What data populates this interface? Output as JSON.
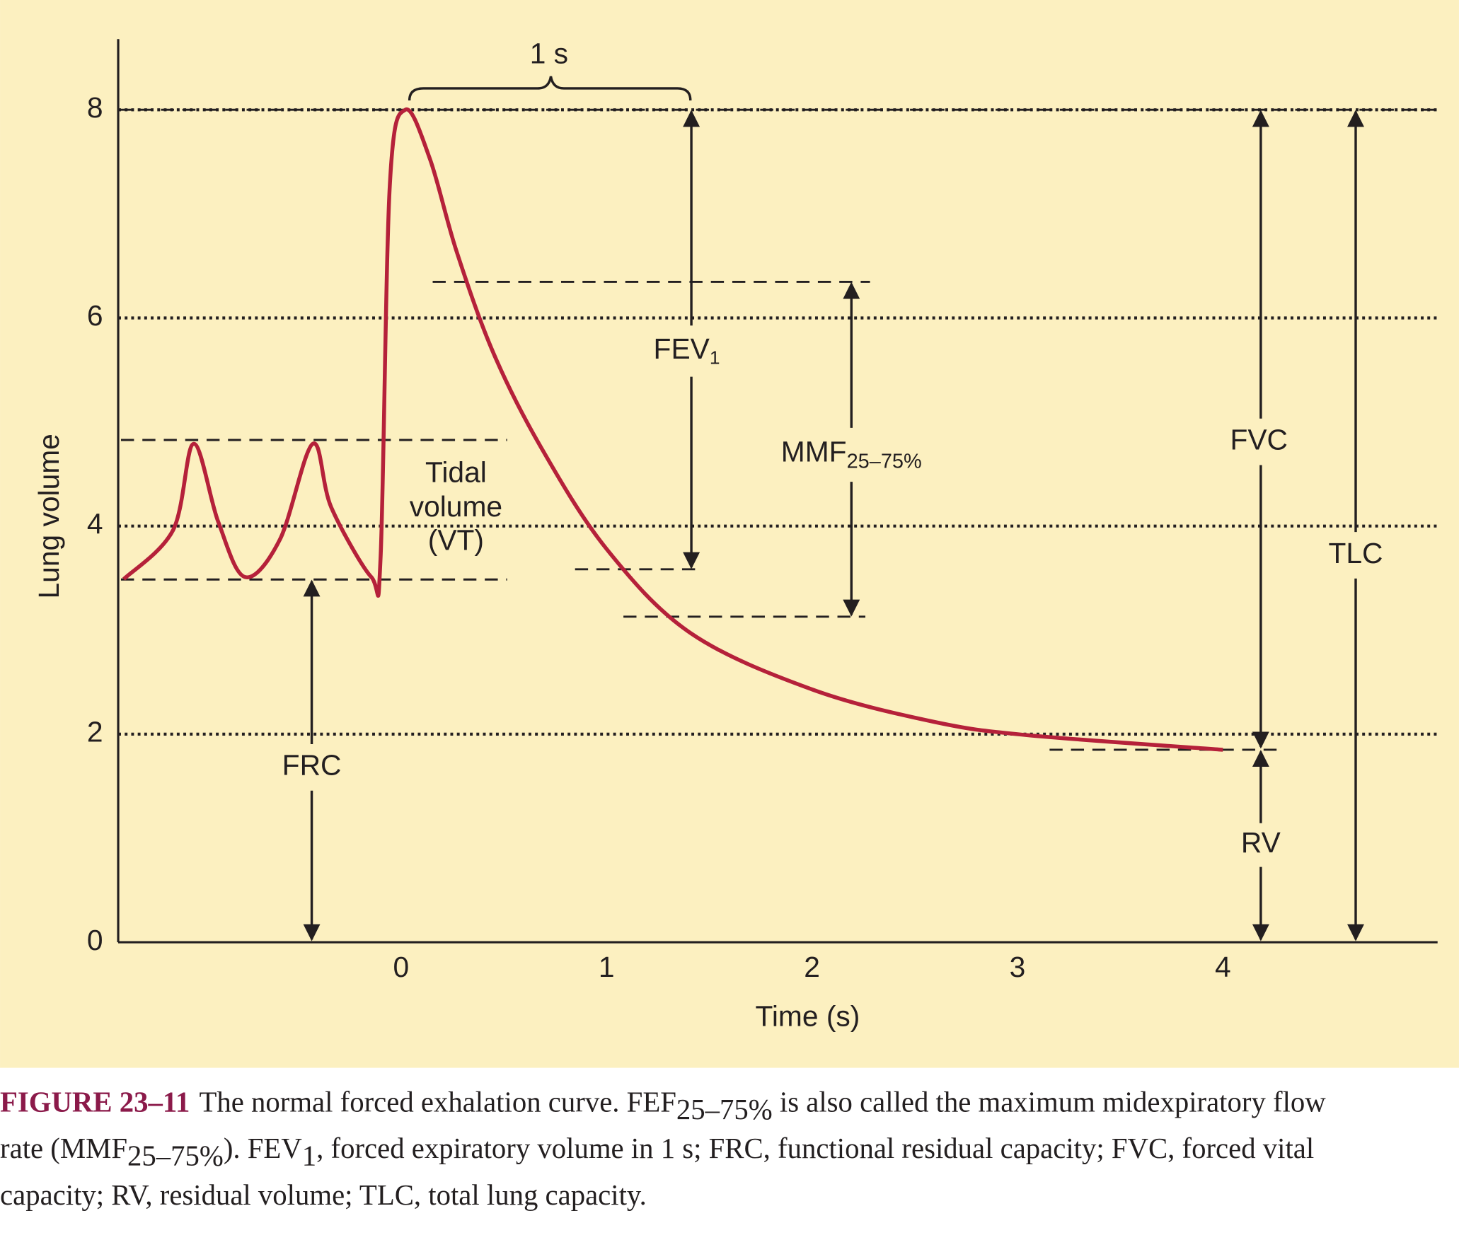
{
  "chart_data": {
    "type": "line",
    "ylabel": "Lung volume",
    "xlabel": "Time (s)",
    "x": [
      -1.35,
      -1.11,
      -1.01,
      -0.89,
      -0.76,
      -0.59,
      -0.43,
      -0.34,
      -0.145,
      -0.1,
      -0.055,
      0.02,
      0.14,
      0.27,
      0.45,
      0.68,
      1.0,
      1.41,
      2.0,
      2.59,
      3.05,
      4.0
    ],
    "series": [
      {
        "color": "#b5213a",
        "values": [
          3.49,
          3.96,
          4.79,
          4.04,
          3.51,
          3.87,
          4.79,
          4.18,
          3.51,
          3.69,
          7.27,
          8.0,
          7.53,
          6.64,
          5.66,
          4.76,
          3.78,
          2.97,
          2.43,
          2.12,
          1.99,
          1.85
        ]
      }
    ],
    "xlim": [
      -1.377,
      5.045
    ],
    "ylim": [
      0,
      8.68
    ],
    "xticks": [
      0,
      1,
      2,
      3,
      4
    ],
    "yticks": [
      0,
      2,
      4,
      6,
      8
    ],
    "grid": true,
    "annotations": {
      "one_second": "1 s",
      "fev": [
        "FEV",
        "1"
      ],
      "mmf": [
        "MMF",
        "25–75%"
      ],
      "tidal": [
        "Tidal",
        "volume",
        "(VT)"
      ],
      "fvc": "FVC",
      "tlc": "TLC",
      "rv": "RV",
      "frc": "FRC"
    }
  },
  "caption": {
    "label": "FIGURE 23–11",
    "lines": [
      [
        "The normal forced exhalation curve. FEF",
        "25–75%",
        " is also called the maximum midexpiratory flow"
      ],
      [
        "rate (MMF",
        "25–75%",
        "). FEV",
        "1",
        ", forced expiratory volume in 1 s; FRC, functional residual capacity; FVC, forced vital"
      ],
      [
        "capacity; RV, residual volume; TLC, total lung capacity."
      ]
    ]
  }
}
